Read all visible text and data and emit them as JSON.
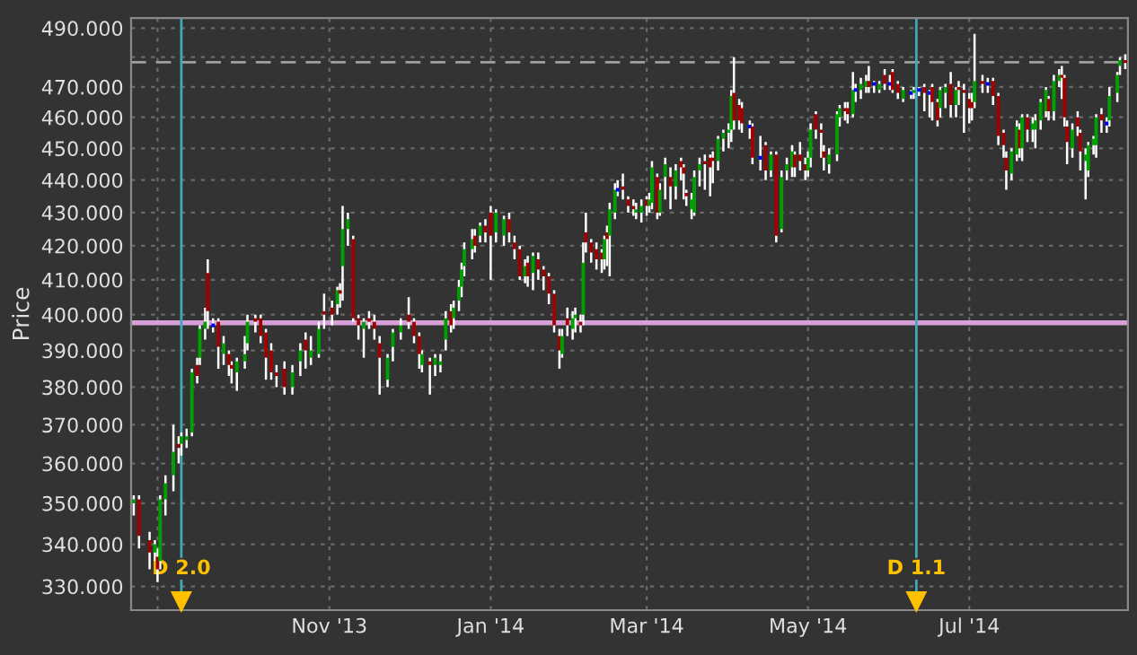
{
  "chart_data": {
    "type": "candlestick",
    "ylabel": "Price",
    "log": true,
    "grid": true,
    "ylim": [
      324.5,
      493.5
    ],
    "yticks": [
      {
        "value": 330,
        "label": "330.000"
      },
      {
        "value": 340,
        "label": "340.000"
      },
      {
        "value": 350,
        "label": "350.000"
      },
      {
        "value": 360,
        "label": "360.000"
      },
      {
        "value": 370,
        "label": "370.000"
      },
      {
        "value": 380,
        "label": "380.000"
      },
      {
        "value": 390,
        "label": "390.000"
      },
      {
        "value": 400,
        "label": "400.000"
      },
      {
        "value": 410,
        "label": "410.000"
      },
      {
        "value": 420,
        "label": "420.000"
      },
      {
        "value": 430,
        "label": "430.000"
      },
      {
        "value": 440,
        "label": "440.000"
      },
      {
        "value": 450,
        "label": "450.000"
      },
      {
        "value": 460,
        "label": "460.000"
      },
      {
        "value": 470,
        "label": "470.000"
      },
      {
        "value": 480,
        "label": null
      },
      {
        "value": 490,
        "label": "490.000"
      }
    ],
    "xlim": [
      "2013-08-18",
      "2014-08-30"
    ],
    "xticks": [
      {
        "value": "2013-08-28",
        "label": null
      },
      {
        "value": "2013-11-01",
        "label": "Nov '13"
      },
      {
        "value": "2014-01-01",
        "label": "Jan '14"
      },
      {
        "value": "2014-03-01",
        "label": "Mar '14"
      },
      {
        "value": "2014-05-01",
        "label": "May '14"
      },
      {
        "value": "2014-07-01",
        "label": "Jul '14"
      }
    ],
    "ref_lines": [
      {
        "axis": "y",
        "value": 397.7,
        "label": null,
        "color": "#d8a0d8",
        "line_style": "solid"
      },
      {
        "axis": "y",
        "value": 478.3,
        "label": null,
        "color": "#a0a0a0",
        "line_style": "dashed"
      },
      {
        "axis": "x",
        "value": "2013-09-06",
        "label": "D 2.0",
        "color": "#40a8b8",
        "line_style": "solid"
      },
      {
        "axis": "x",
        "value": "2014-06-11",
        "label": "D 1.1",
        "color": "#40a8b8",
        "line_style": "solid"
      }
    ],
    "x": [
      "2013-08-19",
      "2013-08-21",
      "2013-08-25",
      "2013-08-27",
      "2013-08-28",
      "2013-08-29",
      "2013-08-31",
      "2013-09-03",
      "2013-09-05",
      "2013-09-06",
      "2013-09-08",
      "2013-09-10",
      "2013-09-12",
      "2013-09-13",
      "2013-09-15",
      "2013-09-16",
      "2013-09-18",
      "2013-09-20",
      "2013-09-22",
      "2013-09-24",
      "2013-09-25",
      "2013-09-27",
      "2013-09-30",
      "2013-10-01",
      "2013-10-04",
      "2013-10-06",
      "2013-10-08",
      "2013-10-10",
      "2013-10-12",
      "2013-10-15",
      "2013-10-18",
      "2013-10-21",
      "2013-10-23",
      "2013-10-25",
      "2013-10-28",
      "2013-10-30",
      "2013-11-02",
      "2013-11-04",
      "2013-11-05",
      "2013-11-06",
      "2013-11-08",
      "2013-11-10",
      "2013-11-12",
      "2013-11-14",
      "2013-11-16",
      "2013-11-18",
      "2013-11-20",
      "2013-11-23",
      "2013-11-25",
      "2013-11-28",
      "2013-12-01",
      "2013-12-03",
      "2013-12-05",
      "2013-12-06",
      "2013-12-09",
      "2013-12-11",
      "2013-12-13",
      "2013-12-15",
      "2013-12-17",
      "2013-12-18",
      "2013-12-20",
      "2013-12-21",
      "2013-12-22",
      "2013-12-25",
      "2013-12-26",
      "2013-12-28",
      "2013-12-30",
      "2014-01-01",
      "2014-01-03",
      "2014-01-06",
      "2014-01-08",
      "2014-01-10",
      "2014-01-12",
      "2014-01-14",
      "2014-01-15",
      "2014-01-17",
      "2014-01-19",
      "2014-01-21",
      "2014-01-23",
      "2014-01-25",
      "2014-01-27",
      "2014-01-28",
      "2014-01-30",
      "2014-02-01",
      "2014-02-02",
      "2014-02-04",
      "2014-02-05",
      "2014-02-06",
      "2014-02-08",
      "2014-02-10",
      "2014-02-12",
      "2014-02-13",
      "2014-02-14",
      "2014-02-15",
      "2014-02-17",
      "2014-02-18",
      "2014-02-20",
      "2014-02-22",
      "2014-02-24",
      "2014-02-25",
      "2014-02-27",
      "2014-03-01",
      "2014-03-02",
      "2014-03-03",
      "2014-03-05",
      "2014-03-06",
      "2014-03-08",
      "2014-03-10",
      "2014-03-12",
      "2014-03-14",
      "2014-03-15",
      "2014-03-16",
      "2014-03-18",
      "2014-03-19",
      "2014-03-21",
      "2014-03-23",
      "2014-03-25",
      "2014-03-26",
      "2014-03-28",
      "2014-03-30",
      "2014-04-01",
      "2014-04-02",
      "2014-04-03",
      "2014-04-05",
      "2014-04-06",
      "2014-04-09",
      "2014-04-10",
      "2014-04-13",
      "2014-04-15",
      "2014-04-17",
      "2014-04-19",
      "2014-04-21",
      "2014-04-23",
      "2014-04-25",
      "2014-04-26",
      "2014-04-28",
      "2014-04-30",
      "2014-05-01",
      "2014-05-02",
      "2014-05-04",
      "2014-05-06",
      "2014-05-07",
      "2014-05-09",
      "2014-05-12",
      "2014-05-13",
      "2014-05-15",
      "2014-05-16",
      "2014-05-18",
      "2014-05-19",
      "2014-05-21",
      "2014-05-23",
      "2014-05-24",
      "2014-05-26",
      "2014-05-28",
      "2014-05-30",
      "2014-06-01",
      "2014-06-02",
      "2014-06-04",
      "2014-06-06",
      "2014-06-09",
      "2014-06-10",
      "2014-06-12",
      "2014-06-14",
      "2014-06-16",
      "2014-06-17",
      "2014-06-19",
      "2014-06-20",
      "2014-06-22",
      "2014-06-24",
      "2014-06-26",
      "2014-06-27",
      "2014-06-29",
      "2014-07-01",
      "2014-07-02",
      "2014-07-03",
      "2014-07-06",
      "2014-07-08",
      "2014-07-10",
      "2014-07-12",
      "2014-07-14",
      "2014-07-15",
      "2014-07-17",
      "2014-07-19",
      "2014-07-20",
      "2014-07-21",
      "2014-07-23",
      "2014-07-25",
      "2014-07-26",
      "2014-07-28",
      "2014-07-30",
      "2014-07-31",
      "2014-08-02",
      "2014-08-04",
      "2014-08-05",
      "2014-08-06",
      "2014-08-07",
      "2014-08-09",
      "2014-08-11",
      "2014-08-12",
      "2014-08-14",
      "2014-08-15",
      "2014-08-17",
      "2014-08-18",
      "2014-08-20",
      "2014-08-22",
      "2014-08-23",
      "2014-08-26",
      "2014-08-27",
      "2014-08-29"
    ],
    "ohlc": [
      [
        350,
        352,
        347,
        351
      ],
      [
        351,
        352,
        339,
        342
      ],
      [
        341,
        343,
        334,
        338
      ],
      [
        338,
        341,
        336,
        340
      ],
      [
        337,
        339,
        331,
        334
      ],
      [
        336,
        352,
        334,
        351
      ],
      [
        351,
        357,
        347,
        355
      ],
      [
        357,
        370,
        353,
        363
      ],
      [
        365,
        367,
        360,
        364
      ],
      [
        365,
        368,
        362,
        367
      ],
      [
        366,
        369,
        364,
        367
      ],
      [
        368,
        385,
        367,
        384
      ],
      [
        386,
        388,
        381,
        383
      ],
      [
        388,
        397,
        386,
        396
      ],
      [
        396,
        402,
        393,
        398
      ],
      [
        412,
        416,
        396,
        401
      ],
      [
        397,
        399,
        395,
        397
      ],
      [
        398,
        399,
        385,
        391
      ],
      [
        389,
        394,
        386,
        392
      ],
      [
        389,
        390,
        383,
        386
      ],
      [
        386,
        387,
        381,
        385
      ],
      [
        384,
        388,
        379,
        387
      ],
      [
        387,
        394,
        385,
        389
      ],
      [
        392,
        400,
        390,
        398
      ],
      [
        399,
        400,
        395,
        398
      ],
      [
        399,
        400,
        392,
        394
      ],
      [
        395,
        396,
        382,
        388
      ],
      [
        390,
        392,
        382,
        384
      ],
      [
        384,
        386,
        380,
        383
      ],
      [
        385,
        387,
        378,
        380
      ],
      [
        380,
        386,
        378,
        384
      ],
      [
        387,
        392,
        383,
        390
      ],
      [
        393,
        395,
        385,
        390
      ],
      [
        388,
        394,
        386,
        390
      ],
      [
        389,
        398,
        388,
        396
      ],
      [
        401,
        406,
        396,
        400
      ],
      [
        402,
        404,
        397,
        400
      ],
      [
        403,
        408,
        400,
        407
      ],
      [
        407,
        409,
        402,
        406
      ],
      [
        414,
        432,
        404,
        425
      ],
      [
        425,
        430,
        420,
        428
      ],
      [
        422,
        423,
        398,
        399
      ],
      [
        399,
        400,
        393,
        397
      ],
      [
        396,
        399,
        388,
        398
      ],
      [
        399,
        401,
        396,
        398
      ],
      [
        398,
        400,
        393,
        396
      ],
      [
        392,
        394,
        378,
        388
      ],
      [
        382,
        389,
        380,
        388
      ],
      [
        391,
        396,
        387,
        395
      ],
      [
        395,
        399,
        393,
        397
      ],
      [
        400,
        405,
        396,
        398
      ],
      [
        398,
        399,
        392,
        394
      ],
      [
        394,
        395,
        385,
        389
      ],
      [
        386,
        390,
        384,
        389
      ],
      [
        387,
        388,
        378,
        386
      ],
      [
        386,
        389,
        383,
        388
      ],
      [
        386,
        389,
        384,
        387
      ],
      [
        393,
        401,
        390,
        399
      ],
      [
        401,
        403,
        395,
        397
      ],
      [
        399,
        404,
        396,
        402
      ],
      [
        404,
        410,
        401,
        408
      ],
      [
        408,
        415,
        405,
        413
      ],
      [
        414,
        421,
        411,
        419
      ],
      [
        419,
        425,
        416,
        422
      ],
      [
        423,
        425,
        418,
        420
      ],
      [
        423,
        427,
        421,
        426
      ],
      [
        426,
        428,
        421,
        424
      ],
      [
        430,
        432,
        410,
        423
      ],
      [
        424,
        431,
        421,
        430
      ],
      [
        423,
        429,
        420,
        428
      ],
      [
        428,
        430,
        421,
        424
      ],
      [
        421,
        423,
        416,
        419
      ],
      [
        419,
        420,
        410,
        411
      ],
      [
        411,
        416,
        409,
        414
      ],
      [
        415,
        417,
        408,
        411
      ],
      [
        412,
        418,
        407,
        417
      ],
      [
        416,
        418,
        410,
        413
      ],
      [
        413,
        414,
        407,
        411
      ],
      [
        411,
        412,
        403,
        406
      ],
      [
        406,
        407,
        395,
        397
      ],
      [
        394,
        396,
        385,
        390
      ],
      [
        389,
        396,
        388,
        394
      ],
      [
        399,
        402,
        394,
        397
      ],
      [
        396,
        401,
        393,
        399
      ],
      [
        399,
        402,
        395,
        400
      ],
      [
        398,
        400,
        395,
        397
      ],
      [
        400,
        421,
        397,
        415
      ],
      [
        424,
        430,
        418,
        421
      ],
      [
        421,
        422,
        415,
        418
      ],
      [
        419,
        421,
        413,
        416
      ],
      [
        418,
        419,
        412,
        416
      ],
      [
        416,
        423,
        413,
        422
      ],
      [
        424,
        426,
        414,
        422
      ],
      [
        423,
        433,
        411,
        431
      ],
      [
        430,
        439,
        428,
        437
      ],
      [
        437,
        440,
        435,
        437
      ],
      [
        438,
        442,
        434,
        437
      ],
      [
        434,
        435,
        430,
        432
      ],
      [
        432,
        434,
        429,
        431
      ],
      [
        430,
        433,
        428,
        431
      ],
      [
        430,
        434,
        427,
        432
      ],
      [
        434,
        435,
        429,
        432
      ],
      [
        432,
        436,
        430,
        434
      ],
      [
        433,
        446,
        431,
        444
      ],
      [
        441,
        442,
        428,
        430
      ],
      [
        430,
        439,
        429,
        437
      ],
      [
        441,
        447,
        434,
        445
      ],
      [
        441,
        444,
        431,
        438
      ],
      [
        438,
        445,
        434,
        443
      ],
      [
        446,
        447,
        440,
        444
      ],
      [
        444,
        445,
        434,
        442
      ],
      [
        436,
        437,
        432,
        435
      ],
      [
        431,
        436,
        428,
        434
      ],
      [
        430,
        443,
        429,
        441
      ],
      [
        443,
        447,
        438,
        445
      ],
      [
        446,
        448,
        437,
        445
      ],
      [
        447,
        448,
        435,
        444
      ],
      [
        447,
        449,
        439,
        446
      ],
      [
        446,
        454,
        443,
        453
      ],
      [
        453,
        456,
        449,
        455
      ],
      [
        455,
        458,
        450,
        456
      ],
      [
        456,
        469,
        452,
        467
      ],
      [
        468,
        480,
        456,
        459
      ],
      [
        464,
        466,
        456,
        459
      ],
      [
        463,
        465,
        455,
        458
      ],
      [
        457,
        459,
        453,
        457
      ],
      [
        457,
        458,
        445,
        447
      ],
      [
        447,
        454,
        443,
        447
      ],
      [
        451,
        452,
        440,
        443
      ],
      [
        443,
        449,
        441,
        448
      ],
      [
        448,
        449,
        421,
        423
      ],
      [
        425,
        443,
        424,
        441
      ],
      [
        443,
        447,
        440,
        445
      ],
      [
        444,
        451,
        441,
        449
      ],
      [
        448,
        449,
        441,
        444
      ],
      [
        448,
        452,
        443,
        446
      ],
      [
        445,
        447,
        440,
        443
      ],
      [
        443,
        449,
        441,
        447
      ],
      [
        447,
        458,
        444,
        456
      ],
      [
        461,
        462,
        453,
        456
      ],
      [
        456,
        458,
        447,
        455
      ],
      [
        449,
        451,
        443,
        447
      ],
      [
        445,
        450,
        442,
        448
      ],
      [
        448,
        462,
        446,
        461
      ],
      [
        460,
        464,
        457,
        463
      ],
      [
        463,
        465,
        459,
        462
      ],
      [
        463,
        465,
        458,
        461
      ],
      [
        461,
        475,
        460,
        469
      ],
      [
        469,
        471,
        465,
        469
      ],
      [
        469,
        473,
        466,
        471
      ],
      [
        470,
        474,
        468,
        472
      ],
      [
        472,
        477,
        468,
        470
      ],
      [
        471,
        472,
        468,
        471
      ],
      [
        469,
        472,
        468,
        471
      ],
      [
        474,
        476,
        469,
        471
      ],
      [
        471,
        474,
        469,
        471
      ],
      [
        475,
        476,
        468,
        469
      ],
      [
        471,
        472,
        466,
        468
      ],
      [
        466,
        470,
        465,
        469
      ],
      [
        468,
        469,
        466,
        468
      ],
      [
        468,
        470,
        466,
        469
      ],
      [
        469,
        470,
        467,
        469
      ],
      [
        470,
        471,
        462,
        468
      ],
      [
        468,
        469,
        460,
        468
      ],
      [
        470,
        471,
        459,
        465
      ],
      [
        465,
        466,
        457,
        459
      ],
      [
        463,
        470,
        460,
        469
      ],
      [
        468,
        471,
        463,
        470
      ],
      [
        471,
        475,
        460,
        464
      ],
      [
        464,
        470,
        460,
        469
      ],
      [
        470,
        472,
        464,
        469
      ],
      [
        469,
        471,
        455,
        468
      ],
      [
        466,
        468,
        458,
        463
      ],
      [
        465,
        468,
        459,
        463
      ],
      [
        465,
        488,
        463,
        472
      ],
      [
        472,
        474,
        468,
        471
      ],
      [
        471,
        473,
        468,
        471
      ],
      [
        472,
        473,
        464,
        467
      ],
      [
        467,
        468,
        451,
        454
      ],
      [
        455,
        456,
        447,
        451
      ],
      [
        447,
        449,
        437,
        443
      ],
      [
        442,
        450,
        440,
        449
      ],
      [
        448,
        459,
        446,
        457
      ],
      [
        456,
        458,
        447,
        450
      ],
      [
        450,
        461,
        446,
        460
      ],
      [
        460,
        461,
        452,
        456
      ],
      [
        456,
        460,
        452,
        458
      ],
      [
        456,
        461,
        450,
        459
      ],
      [
        459,
        466,
        456,
        465
      ],
      [
        462,
        470,
        460,
        469
      ],
      [
        466,
        467,
        459,
        462
      ],
      [
        462,
        474,
        459,
        472
      ],
      [
        472,
        476,
        470,
        474
      ],
      [
        474,
        477,
        466,
        473
      ],
      [
        473,
        474,
        457,
        460
      ],
      [
        457,
        459,
        445,
        452
      ],
      [
        450,
        458,
        447,
        456
      ],
      [
        460,
        462,
        454,
        457
      ],
      [
        455,
        456,
        443,
        449
      ],
      [
        446,
        450,
        434,
        448
      ],
      [
        443,
        452,
        441,
        451
      ],
      [
        451,
        454,
        448,
        453
      ],
      [
        451,
        461,
        447,
        460
      ],
      [
        461,
        463,
        455,
        459
      ],
      [
        458,
        460,
        455,
        458
      ],
      [
        459,
        470,
        457,
        467
      ],
      [
        468,
        475,
        465,
        474
      ],
      [
        477,
        480,
        474,
        479
      ],
      [
        479,
        481,
        476,
        478
      ]
    ],
    "colors": [
      "#00a000",
      "#a00000",
      "#a00000",
      "#00a000",
      "#a00000",
      "#00a000",
      "#00a000",
      "#00a000",
      "#a00000",
      "#00a000",
      "#00a000",
      "#00a000",
      "#a00000",
      "#00a000",
      "#00a000",
      "#a00000",
      "#0000ff",
      "#a00000",
      "#00a000",
      "#a00000",
      "#a00000",
      "#00a000",
      "#00a000",
      "#00a000",
      "#a00000",
      "#a00000",
      "#a00000",
      "#a00000",
      "#a00000",
      "#a00000",
      "#00a000",
      "#00a000",
      "#a00000",
      "#00a000",
      "#00a000",
      "#a00000",
      "#a00000",
      "#00a000",
      "#a00000",
      "#00a000",
      "#00a000",
      "#a00000",
      "#a00000",
      "#00a000",
      "#a00000",
      "#a00000",
      "#a00000",
      "#00a000",
      "#00a000",
      "#00a000",
      "#a00000",
      "#a00000",
      "#a00000",
      "#00a000",
      "#a00000",
      "#00a000",
      "#00a000",
      "#00a000",
      "#a00000",
      "#00a000",
      "#00a000",
      "#00a000",
      "#00a000",
      "#00a000",
      "#a00000",
      "#00a000",
      "#a00000",
      "#a00000",
      "#00a000",
      "#00a000",
      "#a00000",
      "#a00000",
      "#a00000",
      "#00a000",
      "#a00000",
      "#00a000",
      "#a00000",
      "#a00000",
      "#a00000",
      "#a00000",
      "#a00000",
      "#00a000",
      "#a00000",
      "#00a000",
      "#00a000",
      "#a00000",
      "#00a000",
      "#a00000",
      "#a00000",
      "#a00000",
      "#a00000",
      "#00a000",
      "#a00000",
      "#00a000",
      "#00a000",
      "#0000ff",
      "#a00000",
      "#a00000",
      "#a00000",
      "#00a000",
      "#00a000",
      "#a00000",
      "#00a000",
      "#00a000",
      "#a00000",
      "#00a000",
      "#00a000",
      "#a00000",
      "#00a000",
      "#a00000",
      "#a00000",
      "#a00000",
      "#00a000",
      "#00a000",
      "#00a000",
      "#a00000",
      "#a00000",
      "#a00000",
      "#00a000",
      "#00a000",
      "#00a000",
      "#00a000",
      "#a00000",
      "#a00000",
      "#a00000",
      "#0000ff",
      "#a00000",
      "#0000ff",
      "#a00000",
      "#00a000",
      "#a00000",
      "#00a000",
      "#00a000",
      "#00a000",
      "#a00000",
      "#a00000",
      "#a00000",
      "#00a000",
      "#00a000",
      "#a00000",
      "#a00000",
      "#a00000",
      "#00a000",
      "#00a000",
      "#00a000",
      "#a00000",
      "#a00000",
      "#00a000",
      "#0000ff",
      "#00a000",
      "#00a000",
      "#a00000",
      "#0000ff",
      "#00a000",
      "#a00000",
      "#0000ff",
      "#a00000",
      "#a00000",
      "#00a000",
      "#0000ff",
      "#00a000",
      "#0000ff",
      "#a00000",
      "#0000ff",
      "#a00000",
      "#a00000",
      "#00a000",
      "#00a000",
      "#a00000",
      "#00a000",
      "#a00000",
      "#a00000",
      "#a00000",
      "#a00000",
      "#00a000",
      "#a00000",
      "#0000ff",
      "#a00000",
      "#a00000",
      "#a00000",
      "#a00000",
      "#00a000",
      "#00a000",
      "#a00000",
      "#00a000",
      "#a00000",
      "#00a000",
      "#00a000",
      "#00a000",
      "#00a000",
      "#a00000",
      "#00a000",
      "#00a000",
      "#a00000",
      "#a00000",
      "#a00000",
      "#00a000",
      "#a00000",
      "#a00000",
      "#00a000",
      "#00a000",
      "#00a000",
      "#00a000",
      "#a00000",
      "#0000ff",
      "#00a000",
      "#00a000",
      "#00a000",
      "#a00000"
    ]
  }
}
